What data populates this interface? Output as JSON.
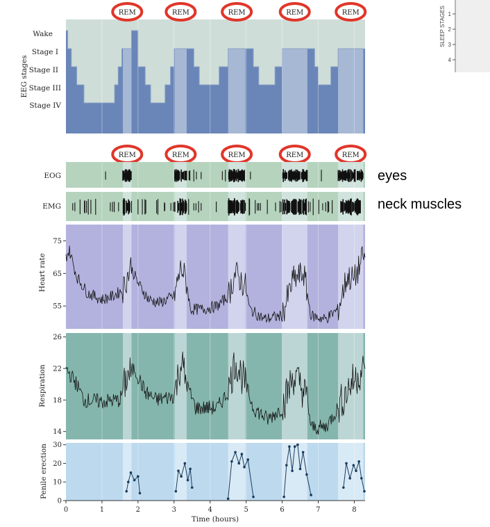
{
  "chart_data": [
    {
      "type": "step",
      "ylabel": "EEG stages",
      "stage_labels": [
        "Wake",
        "Stage I",
        "Stage II",
        "Stage III",
        "Stage IV"
      ],
      "rem_label": "REM",
      "rem_periods": [
        [
          1.58,
          1.82
        ],
        [
          3.02,
          3.35
        ],
        [
          4.5,
          4.98
        ],
        [
          6.0,
          6.7
        ],
        [
          7.55,
          8.25
        ]
      ],
      "hypnogram": [
        [
          0,
          0
        ],
        [
          0.05,
          1
        ],
        [
          0.15,
          2
        ],
        [
          0.3,
          3
        ],
        [
          0.5,
          4
        ],
        [
          1.35,
          3
        ],
        [
          1.45,
          2
        ],
        [
          1.55,
          1
        ],
        [
          1.82,
          0
        ],
        [
          2.0,
          2
        ],
        [
          2.2,
          3
        ],
        [
          2.35,
          4
        ],
        [
          2.75,
          3
        ],
        [
          2.9,
          2
        ],
        [
          3.0,
          1
        ],
        [
          3.35,
          1
        ],
        [
          3.55,
          2
        ],
        [
          3.7,
          3
        ],
        [
          4.25,
          2
        ],
        [
          4.5,
          1
        ],
        [
          4.98,
          1
        ],
        [
          5.2,
          2
        ],
        [
          5.35,
          3
        ],
        [
          5.8,
          2
        ],
        [
          6.0,
          1
        ],
        [
          6.7,
          1
        ],
        [
          6.9,
          2
        ],
        [
          7.0,
          3
        ],
        [
          7.35,
          2
        ],
        [
          7.55,
          1
        ],
        [
          8.25,
          1
        ]
      ],
      "color": "#6a86b8"
    },
    {
      "type": "raster",
      "ylabel": "EOG",
      "annotation": "eyes",
      "color": "#b5d3bd"
    },
    {
      "type": "raster",
      "ylabel": "EMG",
      "annotation": "neck muscles",
      "color": "#b5d3bd"
    },
    {
      "type": "line",
      "ylabel": "Heart rate",
      "ylim": [
        48,
        80
      ],
      "yticks": [
        55,
        65,
        75
      ],
      "color": "#b3b2de",
      "smooth_points": [
        [
          0,
          70
        ],
        [
          0.1,
          72
        ],
        [
          0.3,
          64
        ],
        [
          0.6,
          59
        ],
        [
          1.0,
          57
        ],
        [
          1.3,
          58
        ],
        [
          1.58,
          60
        ],
        [
          1.7,
          64
        ],
        [
          1.8,
          67
        ],
        [
          2.0,
          62
        ],
        [
          2.3,
          57
        ],
        [
          2.6,
          56
        ],
        [
          3.0,
          58
        ],
        [
          3.2,
          67
        ],
        [
          3.35,
          62
        ],
        [
          3.45,
          54
        ],
        [
          3.8,
          54
        ],
        [
          4.2,
          55
        ],
        [
          4.5,
          58
        ],
        [
          4.7,
          65
        ],
        [
          4.98,
          61
        ],
        [
          5.1,
          54
        ],
        [
          5.5,
          51
        ],
        [
          6.0,
          52
        ],
        [
          6.3,
          63
        ],
        [
          6.6,
          65
        ],
        [
          6.8,
          52
        ],
        [
          7.2,
          51
        ],
        [
          7.55,
          54
        ],
        [
          7.8,
          64
        ],
        [
          8.0,
          63
        ],
        [
          8.25,
          70
        ]
      ],
      "noise": 4
    },
    {
      "type": "line",
      "ylabel": "Respiration",
      "ylim": [
        13,
        26.5
      ],
      "yticks": [
        14,
        18,
        22,
        26
      ],
      "color": "#85b6ad",
      "smooth_points": [
        [
          0,
          22
        ],
        [
          0.3,
          20
        ],
        [
          0.5,
          18
        ],
        [
          1.0,
          17.8
        ],
        [
          1.5,
          18
        ],
        [
          1.7,
          21
        ],
        [
          1.9,
          22
        ],
        [
          2.2,
          19
        ],
        [
          2.5,
          18
        ],
        [
          3.0,
          18.5
        ],
        [
          3.2,
          23
        ],
        [
          3.35,
          20
        ],
        [
          3.6,
          17
        ],
        [
          4.2,
          17
        ],
        [
          4.5,
          19
        ],
        [
          4.7,
          23
        ],
        [
          4.98,
          20
        ],
        [
          5.2,
          17
        ],
        [
          5.6,
          15.5
        ],
        [
          6.0,
          17
        ],
        [
          6.3,
          21
        ],
        [
          6.5,
          20
        ],
        [
          6.7,
          18
        ],
        [
          6.8,
          14.5
        ],
        [
          7.2,
          14.5
        ],
        [
          7.55,
          17
        ],
        [
          7.9,
          20
        ],
        [
          8.25,
          22
        ]
      ],
      "noise": 2.2
    },
    {
      "type": "line",
      "xlabel": "Time (hours)",
      "ylabel": "Penile erection",
      "ylim": [
        0,
        31
      ],
      "yticks": [
        0,
        10,
        20,
        30
      ],
      "xticks": [
        0,
        1,
        2,
        3,
        4,
        5,
        6,
        7,
        8
      ],
      "color": "#bcd9ee",
      "series": [
        {
          "x": [
            1.68,
            1.73,
            1.8,
            1.9,
            2.0,
            2.05
          ],
          "y": [
            5,
            10,
            15,
            11,
            13,
            4
          ]
        },
        {
          "x": [
            3.05,
            3.12,
            3.2,
            3.3,
            3.38,
            3.45,
            3.5
          ],
          "y": [
            5,
            16,
            13,
            20,
            11,
            17,
            7
          ]
        },
        {
          "x": [
            4.5,
            4.6,
            4.7,
            4.8,
            4.88,
            4.95,
            5.05,
            5.2
          ],
          "y": [
            1,
            21,
            26,
            20,
            25,
            18,
            22,
            2
          ]
        },
        {
          "x": [
            6.05,
            6.12,
            6.2,
            6.28,
            6.35,
            6.43,
            6.5,
            6.58,
            6.68,
            6.8
          ],
          "y": [
            2,
            19,
            29,
            16,
            29,
            30,
            17,
            26,
            14,
            3
          ]
        },
        {
          "x": [
            7.7,
            7.78,
            7.88,
            7.98,
            8.05,
            8.13,
            8.2,
            8.28
          ],
          "y": [
            7,
            20,
            12,
            19,
            16,
            21,
            12,
            5
          ]
        }
      ]
    }
  ],
  "inset": {
    "ylabel": "SLEEP STAGES",
    "ticks": [
      "1",
      "2",
      "3",
      "4"
    ]
  },
  "colors": {
    "rem_ring": "#e0362a",
    "dark_blue": "#6a86b8",
    "green": "#b5d3bd",
    "purple": "#b3b2de",
    "teal": "#85b6ad",
    "lightblue": "#bcd9ee"
  }
}
